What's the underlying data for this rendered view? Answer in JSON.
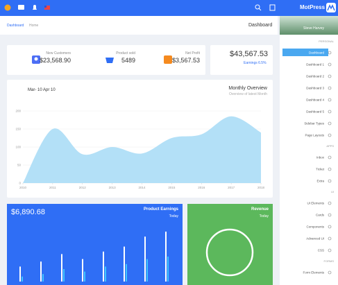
{
  "header": {
    "brand": "MotPress"
  },
  "breadcrumb": {
    "items": [
      "Dashboard",
      "Home"
    ],
    "title": "Dashboard"
  },
  "stats": [
    {
      "label": "New Customers",
      "value": "$23,568.90"
    },
    {
      "label": "Product sold",
      "value": "5489"
    },
    {
      "label": "Net Profit",
      "value": "$3,567.53"
    }
  ],
  "earnings_card": {
    "value": "$43,567.53",
    "note": "Earnings 6.5%"
  },
  "overview": {
    "date_range": "Mar- 10 Apr 10",
    "title": "Monthly Overview",
    "subtitle": "Overview of latest Month",
    "chart_data": {
      "type": "area",
      "x": [
        2010,
        2011,
        2012,
        2013,
        2014,
        2015,
        2016,
        2017,
        2018
      ],
      "values": [
        0,
        150,
        80,
        100,
        82,
        125,
        135,
        185,
        140
      ],
      "color": "#b3e0f7",
      "xlim": [
        2010,
        2018
      ],
      "xticks": [
        2010,
        2011,
        2012,
        2013,
        2014,
        2015,
        2016,
        2017,
        2018
      ],
      "ylim": [
        0,
        200
      ],
      "yticks": [
        0,
        50,
        100,
        150,
        200
      ]
    }
  },
  "product_earnings": {
    "value": "$6,890.68",
    "title": "Product Earnings",
    "period": "Today",
    "chart_data": {
      "type": "bar",
      "series": [
        {
          "color": "#ffffff",
          "values": [
            30,
            40,
            55,
            45,
            60,
            70,
            90,
            100
          ]
        },
        {
          "color": "#40c4ff",
          "values": [
            10,
            15,
            25,
            20,
            30,
            35,
            45,
            50
          ]
        }
      ],
      "ylim": [
        0,
        100
      ]
    }
  },
  "revenue": {
    "title": "Revenue",
    "period": "Today"
  },
  "sidebar": {
    "user": "Steve Harvey",
    "sections": [
      {
        "title": "PERSONAL",
        "items": [
          "Dashboard",
          "Dashboard 1",
          "Dashboard 2",
          "Dashboard 3",
          "Dashboard 4",
          "Dashboard 5",
          "Sidebar Types",
          "Page Layouts"
        ]
      },
      {
        "title": "APPS",
        "items": [
          "Inbox",
          "Ticket",
          "Extra"
        ]
      },
      {
        "title": "UI",
        "items": [
          "UI Elements",
          "Cards",
          "Components",
          "Advanced UI",
          "CSS"
        ]
      },
      {
        "title": "FORMS",
        "items": [
          "Form Elements"
        ]
      }
    ]
  }
}
